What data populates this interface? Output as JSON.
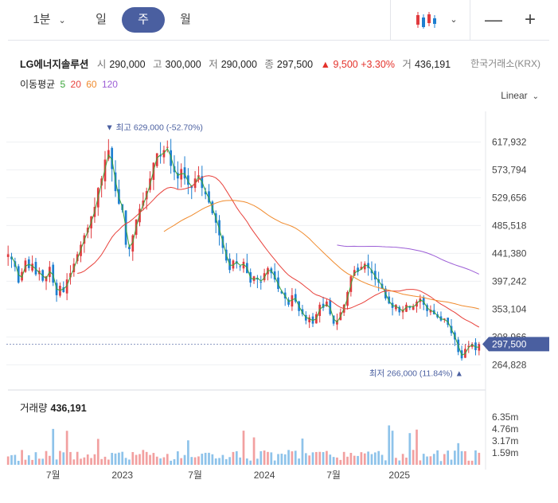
{
  "toolbar": {
    "interval_label": "1분",
    "day_label": "일",
    "week_label": "주",
    "month_label": "월",
    "active_period": "주",
    "chart_type_icon": "candlestick-icon",
    "zoom_out_icon": "minus-icon",
    "zoom_in_icon": "plus-icon"
  },
  "quote": {
    "name": "LG에너지솔루션",
    "open_label": "시",
    "open": "290,000",
    "high_label": "고",
    "high": "300,000",
    "low_label": "저",
    "low": "290,000",
    "close_label": "종",
    "close": "297,500",
    "change": "▲ 9,500 +3.30%",
    "volume_label": "거",
    "volume": "436,191",
    "exchange": "한국거래소(KRX)"
  },
  "moving_average": {
    "label": "이동평균",
    "periods": [
      {
        "label": "5",
        "color": "#3aa53a"
      },
      {
        "label": "20",
        "color": "#e8413b"
      },
      {
        "label": "60",
        "color": "#f08a2c"
      },
      {
        "label": "120",
        "color": "#9c5ed6"
      }
    ]
  },
  "scale_label": "Linear",
  "colors": {
    "up": "#e03a3e",
    "down": "#1d7fd0",
    "accent": "#4a5fa0",
    "vol_up": "#f2a0a0",
    "vol_down": "#8ec3ea"
  },
  "chart_data": {
    "type": "candlestick",
    "period": "weekly",
    "ylim": [
      240000,
      660000
    ],
    "y_ticks": [
      "617,932",
      "573,794",
      "529,656",
      "485,518",
      "441,380",
      "397,242",
      "353,104",
      "308,966",
      "264,828"
    ],
    "y_tick_values": [
      617932,
      573794,
      529656,
      485518,
      441380,
      397242,
      353104,
      308966,
      264828
    ],
    "x_ticks": [
      "7월",
      "2023",
      "7월",
      "2024",
      "7월",
      "2025"
    ],
    "x_tick_index": [
      13,
      33,
      54,
      74,
      94,
      113
    ],
    "current_price": {
      "label": "297,500",
      "value": 297500
    },
    "high_marker": {
      "text": "▼ 최고 629,000 (-52.70%)",
      "value": 629000,
      "index": 29
    },
    "low_marker": {
      "text": "최저 266,000 (11.84%) ▲",
      "value": 266000,
      "index": 131
    },
    "close": [
      440000,
      432000,
      420000,
      395000,
      412000,
      430000,
      418000,
      425000,
      408000,
      414000,
      398000,
      405000,
      420000,
      395000,
      375000,
      390000,
      380000,
      400000,
      410000,
      425000,
      440000,
      455000,
      470000,
      482000,
      500000,
      515000,
      545000,
      560000,
      590000,
      605000,
      575000,
      540000,
      520000,
      510000,
      455000,
      448000,
      470000,
      495000,
      512000,
      525000,
      540000,
      560000,
      585000,
      600000,
      595000,
      605000,
      610000,
      580000,
      570000,
      560000,
      575000,
      560000,
      550000,
      545000,
      560000,
      565000,
      545000,
      535000,
      522000,
      505000,
      490000,
      470000,
      450000,
      430000,
      415000,
      430000,
      425000,
      420000,
      428000,
      410000,
      395000,
      405000,
      400000,
      395000,
      410000,
      418000,
      410000,
      400000,
      385000,
      378000,
      370000,
      360000,
      375000,
      365000,
      350000,
      345000,
      335000,
      340000,
      330000,
      345000,
      360000,
      355000,
      365000,
      345000,
      330000,
      335000,
      348000,
      360000,
      380000,
      405000,
      415000,
      412000,
      420000,
      425000,
      418000,
      410000,
      400000,
      395000,
      385000,
      370000,
      362000,
      355000,
      360000,
      348000,
      352000,
      360000,
      355000,
      358000,
      365000,
      370000,
      360000,
      350000,
      352000,
      345000,
      340000,
      335000,
      338000,
      328000,
      315000,
      305000,
      285000,
      275000,
      290000,
      295000,
      298000,
      288000,
      297500
    ],
    "volume_labels": [
      "6.35m",
      "4.76m",
      "3.17m",
      "1.59m"
    ],
    "volume_tick_values": [
      6350000,
      4760000,
      3170000,
      1590000
    ],
    "volume_label": "거래량",
    "volume_last": "436,191"
  }
}
